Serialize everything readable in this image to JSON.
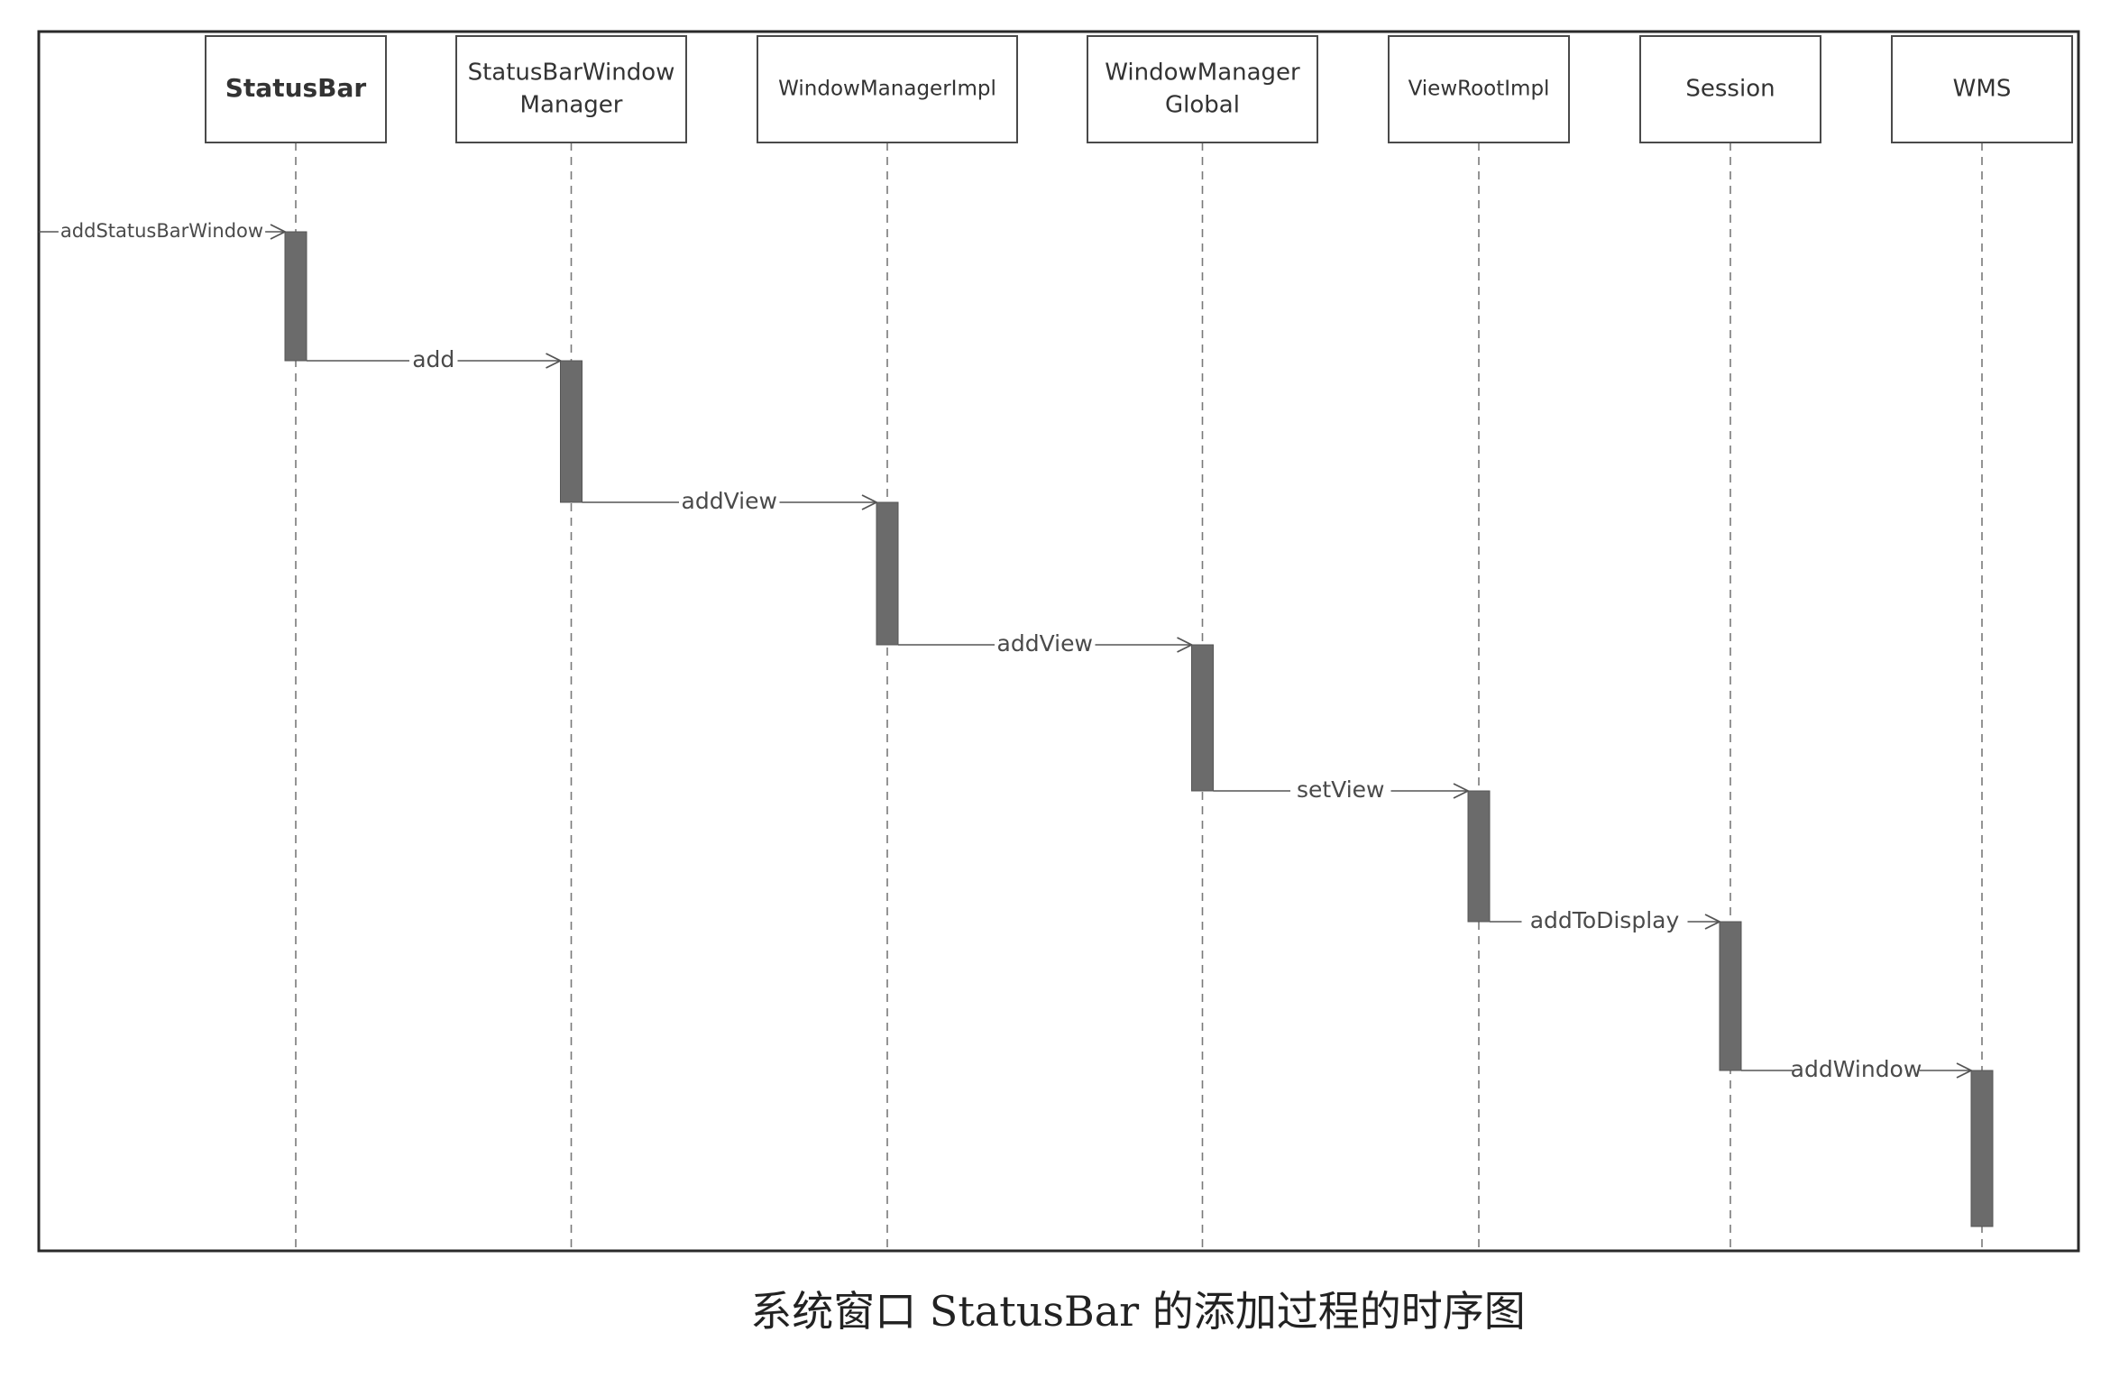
{
  "participants": [
    {
      "id": "statusbar",
      "lines": [
        "StatusBar"
      ]
    },
    {
      "id": "statusbar-window-manager",
      "lines": [
        "StatusBarWindow",
        "Manager"
      ]
    },
    {
      "id": "window-manager-impl",
      "lines": [
        "WindowManagerImpl"
      ]
    },
    {
      "id": "window-manager-global",
      "lines": [
        "WindowManager",
        "Global"
      ]
    },
    {
      "id": "view-root-impl",
      "lines": [
        "ViewRootImpl"
      ]
    },
    {
      "id": "session",
      "lines": [
        "Session"
      ]
    },
    {
      "id": "wms",
      "lines": [
        "WMS"
      ]
    }
  ],
  "messages": [
    {
      "label": "addStatusBarWindow",
      "from": null,
      "to": 0
    },
    {
      "label": "add",
      "from": 0,
      "to": 1
    },
    {
      "label": "addView",
      "from": 1,
      "to": 2
    },
    {
      "label": "addView",
      "from": 2,
      "to": 3
    },
    {
      "label": "setView",
      "from": 3,
      "to": 4
    },
    {
      "label": "addToDisplay",
      "from": 4,
      "to": 5
    },
    {
      "label": "addWindow",
      "from": 5,
      "to": 6
    }
  ],
  "caption": "系统窗口 StatusBar 的添加过程的时序图"
}
